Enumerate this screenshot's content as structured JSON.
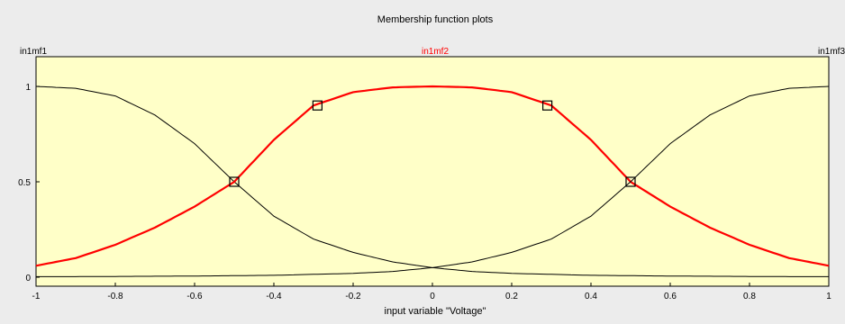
{
  "window": {
    "title": "Membership function plots",
    "xlabel": "input variable \"Voltage\""
  },
  "colors": {
    "background": "#ececec",
    "plot_bg": "#ffffc8",
    "selected": "#ff0000",
    "unselected": "#000000"
  },
  "chart_data": {
    "type": "line",
    "title": "Membership function plots",
    "xlabel": "input variable \"Voltage\"",
    "ylabel": "",
    "xlim": [
      -1,
      1
    ],
    "ylim": [
      0,
      1
    ],
    "xticks": [
      -1,
      -0.8,
      -0.6,
      -0.4,
      -0.2,
      0,
      0.2,
      0.4,
      0.6,
      0.8,
      1
    ],
    "xtick_labels": [
      "-1",
      "-0.8",
      "-0.6",
      "-0.4",
      "-0.2",
      "0",
      "0.2",
      "0.4",
      "0.6",
      "0.8",
      "1"
    ],
    "yticks": [
      0,
      0.5,
      1
    ],
    "ytick_labels": [
      "0",
      "0.5",
      "1"
    ],
    "series": [
      {
        "name": "in1mf1",
        "color": "#000000",
        "x": [
          -1,
          -0.9,
          -0.8,
          -0.7,
          -0.6,
          -0.5,
          -0.4,
          -0.3,
          -0.2,
          -0.1,
          0,
          0.1,
          0.2,
          0.3,
          0.4,
          0.5,
          0.6,
          0.7,
          0.8,
          0.9,
          1
        ],
        "y": [
          1,
          0.99,
          0.95,
          0.85,
          0.7,
          0.5,
          0.32,
          0.2,
          0.13,
          0.08,
          0.05,
          0.03,
          0.02,
          0.015,
          0.01,
          0.008,
          0.006,
          0.005,
          0.004,
          0.003,
          0.003
        ]
      },
      {
        "name": "in1mf2",
        "color": "#ff0000",
        "selected": true,
        "x": [
          -1,
          -0.9,
          -0.8,
          -0.7,
          -0.6,
          -0.5,
          -0.4,
          -0.3,
          -0.2,
          -0.1,
          0,
          0.1,
          0.2,
          0.3,
          0.4,
          0.5,
          0.6,
          0.7,
          0.8,
          0.9,
          1
        ],
        "y": [
          0.06,
          0.1,
          0.17,
          0.26,
          0.37,
          0.5,
          0.72,
          0.9,
          0.97,
          0.995,
          1,
          0.995,
          0.97,
          0.9,
          0.72,
          0.5,
          0.37,
          0.26,
          0.17,
          0.1,
          0.06
        ]
      },
      {
        "name": "in1mf3",
        "color": "#000000",
        "x": [
          -1,
          -0.9,
          -0.8,
          -0.7,
          -0.6,
          -0.5,
          -0.4,
          -0.3,
          -0.2,
          -0.1,
          0,
          0.1,
          0.2,
          0.3,
          0.4,
          0.5,
          0.6,
          0.7,
          0.8,
          0.9,
          1
        ],
        "y": [
          0.003,
          0.003,
          0.004,
          0.005,
          0.006,
          0.008,
          0.01,
          0.015,
          0.02,
          0.03,
          0.05,
          0.08,
          0.13,
          0.2,
          0.32,
          0.5,
          0.7,
          0.85,
          0.95,
          0.99,
          1
        ]
      }
    ],
    "series_labels": [
      "in1mf1",
      "in1mf2",
      "in1mf3"
    ],
    "markers": [
      {
        "x": -0.5,
        "y": 0.5
      },
      {
        "x": -0.29,
        "y": 0.9
      },
      {
        "x": 0.29,
        "y": 0.9
      },
      {
        "x": 0.5,
        "y": 0.5
      }
    ],
    "grid": false
  }
}
